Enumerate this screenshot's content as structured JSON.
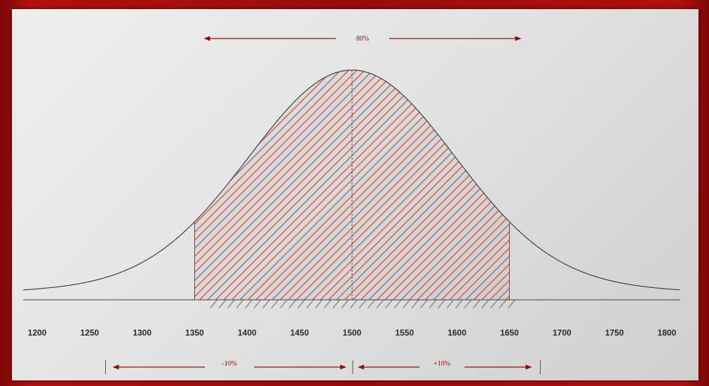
{
  "chart_data": {
    "type": "area",
    "title": "",
    "xlabel": "",
    "ylabel": "",
    "x_ticks": [
      1200,
      1250,
      1300,
      1350,
      1400,
      1450,
      1500,
      1550,
      1600,
      1650,
      1700,
      1750,
      1800
    ],
    "xlim": [
      1200,
      1800
    ],
    "distribution": {
      "shape": "normal",
      "mean": 1500
    },
    "shaded_region": {
      "from": 1350,
      "to": 1650
    },
    "mean_marker": 1500,
    "annotations": {
      "total": {
        "label": "80%",
        "from": 1350,
        "to": 1650
      },
      "lower": {
        "label": "-10%",
        "from": 1350,
        "to": 1500
      },
      "upper": {
        "label": "+10%",
        "from": 1500,
        "to": 1650
      }
    },
    "grid": false,
    "legend": "none"
  },
  "colors": {
    "frame": "#9a0c0a",
    "curve": "#333333",
    "hatch_red": "#c0413a",
    "hatch_blue": "#4f6a96",
    "annotation": "#8a1010"
  }
}
